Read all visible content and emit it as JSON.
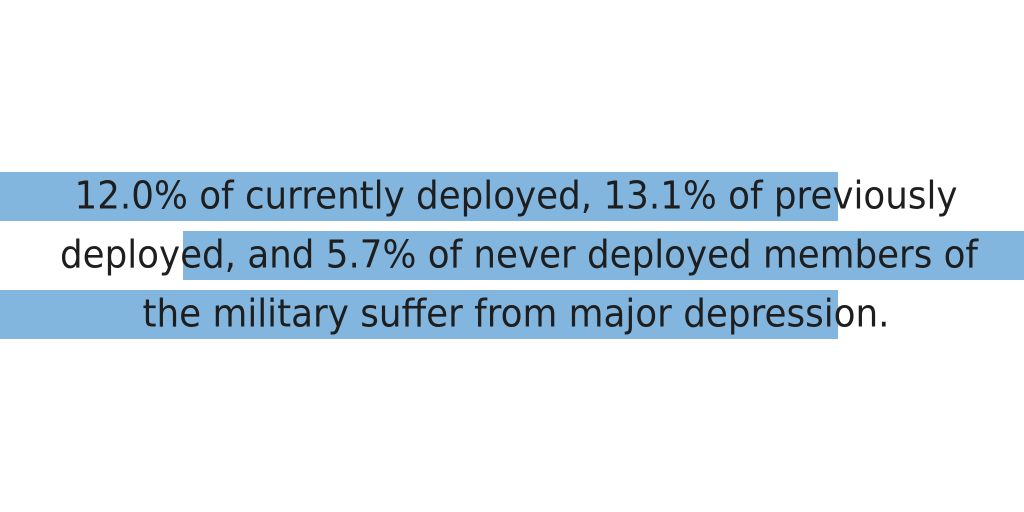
{
  "lines": [
    "12.0% of currently deployed, 13.1% of previously",
    "deployed, and 5.7% of never deployed members of",
    "the military suffer from major depression."
  ]
}
